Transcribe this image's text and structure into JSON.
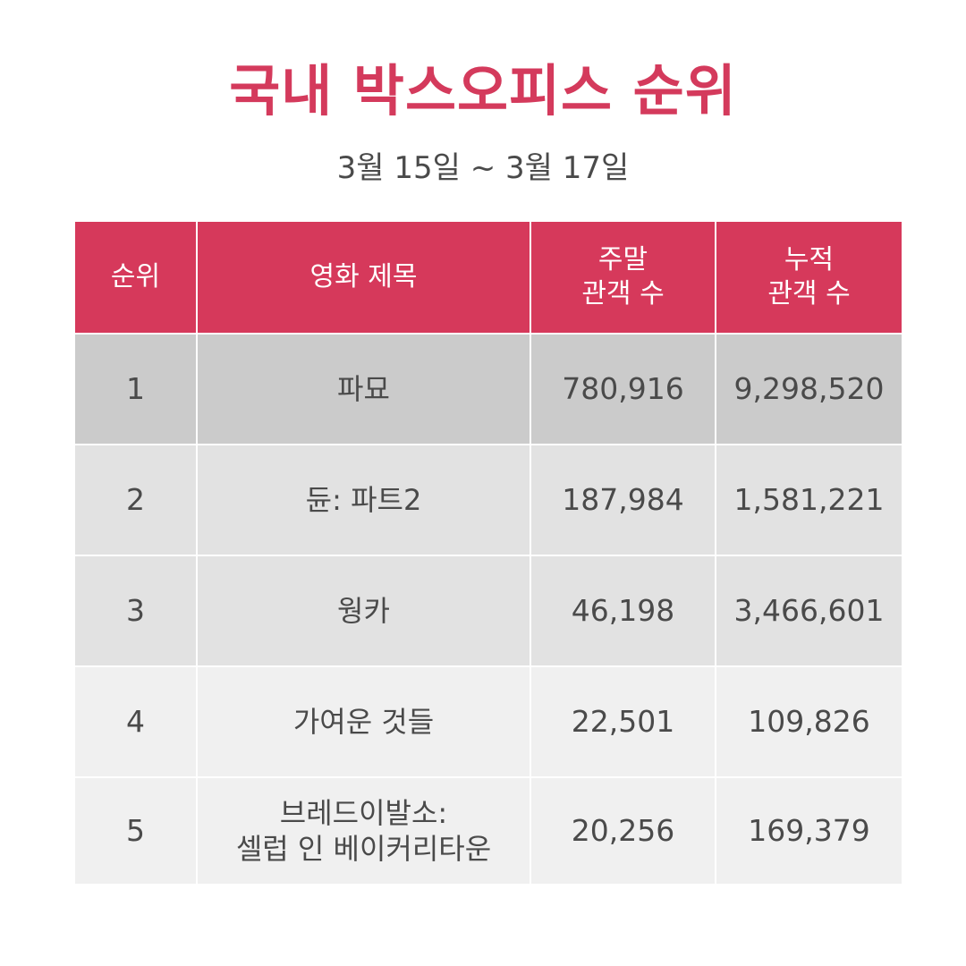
{
  "title": "국내 박스오피스 순위",
  "period": "3월 15일 ~ 3월 17일",
  "table": {
    "headers": {
      "rank": "순위",
      "title": "영화 제목",
      "weekend_line1": "주말",
      "weekend_line2": "관객 수",
      "total_line1": "누적",
      "total_line2": "관객 수"
    },
    "rows": [
      {
        "rank": "1",
        "title_line1": "파묘",
        "title_line2": "",
        "weekend": "780,916",
        "total": "9,298,520"
      },
      {
        "rank": "2",
        "title_line1": "듄: 파트2",
        "title_line2": "",
        "weekend": "187,984",
        "total": "1,581,221"
      },
      {
        "rank": "3",
        "title_line1": "웡카",
        "title_line2": "",
        "weekend": "46,198",
        "total": "3,466,601"
      },
      {
        "rank": "4",
        "title_line1": "가여운 것들",
        "title_line2": "",
        "weekend": "22,501",
        "total": "109,826"
      },
      {
        "rank": "5",
        "title_line1": "브레드이발소:",
        "title_line2": "셀럽 인 베이커리타운",
        "weekend": "20,256",
        "total": "169,379"
      }
    ]
  },
  "colors": {
    "accent": "#d6395b",
    "title": "#d43a5c",
    "text": "#4a4a4a"
  }
}
